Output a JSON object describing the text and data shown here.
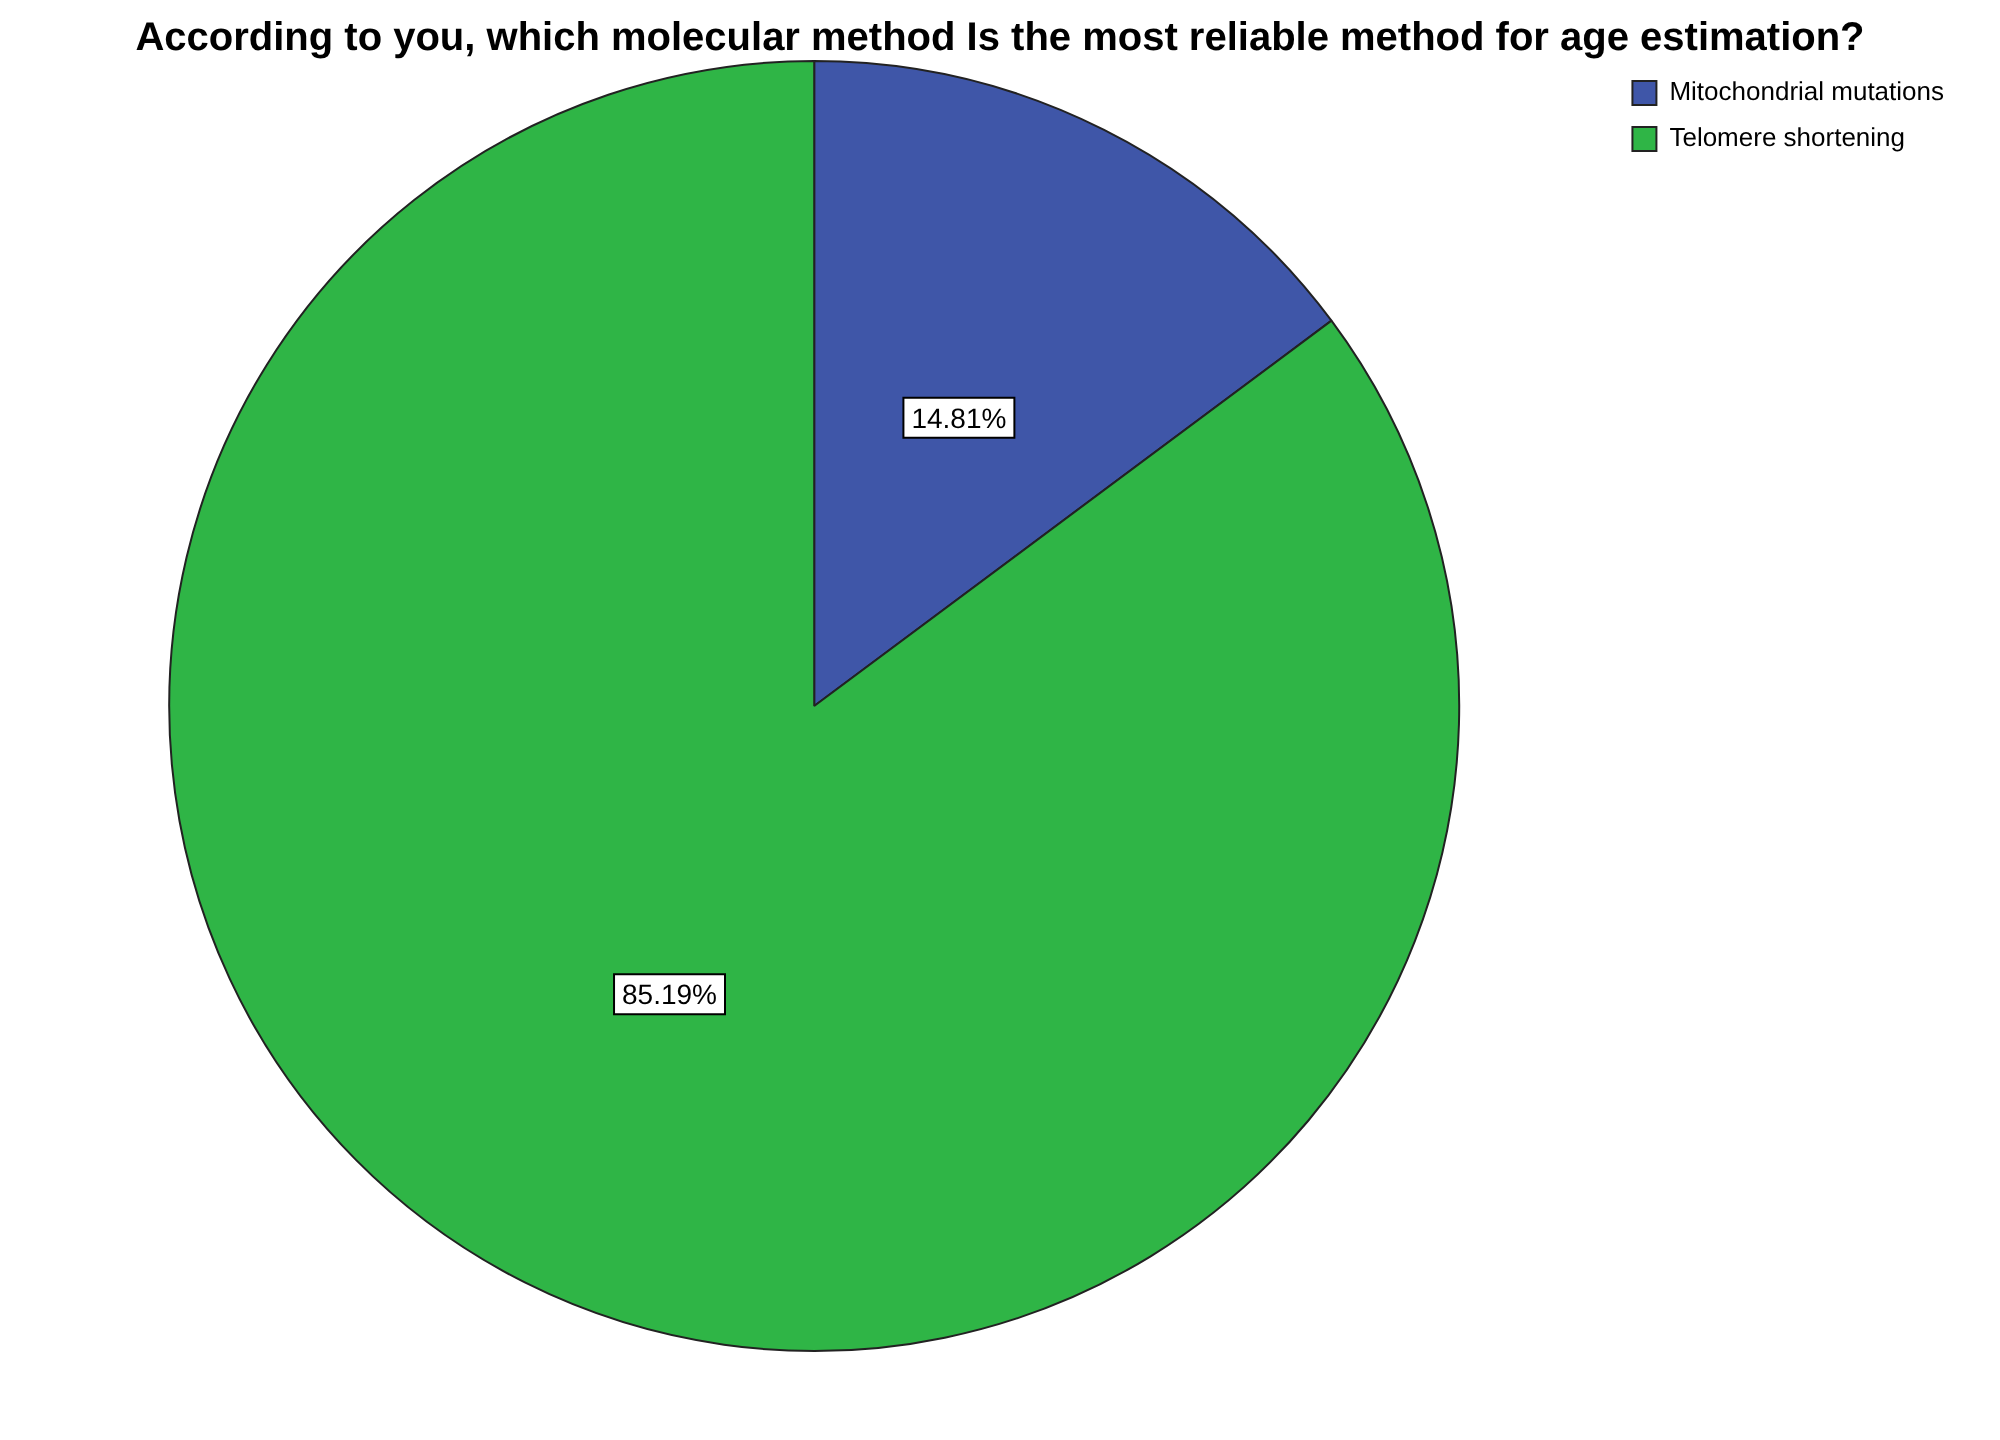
{
  "chart_data": {
    "type": "pie",
    "title": "According to you, which molecular method Is the most reliable method for age estimation?",
    "categories": [
      "Mitochondrial mutations",
      "Telomere shortening"
    ],
    "values": [
      14.81,
      85.19
    ],
    "colors": [
      "#3f56a8",
      "#2fb546"
    ],
    "value_labels": [
      "14.81%",
      "85.19%"
    ],
    "legend": "top right"
  }
}
